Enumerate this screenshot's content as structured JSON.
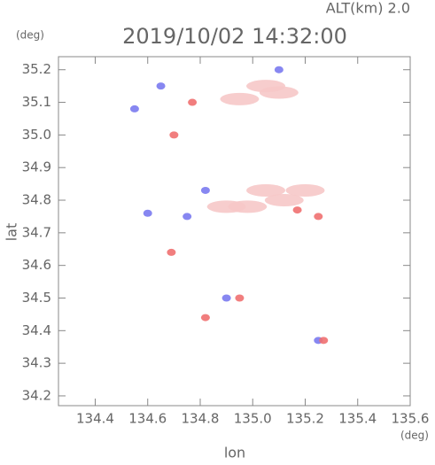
{
  "chart_data": {
    "type": "scatter",
    "title": "2019/10/02 14:32:00",
    "subtitle": "ALT(km) 2.0",
    "y_unit": "(deg)",
    "x_unit": "(deg)",
    "y_label": "lat",
    "x_label": "lon",
    "xlim": [
      134.26,
      135.6
    ],
    "ylim": [
      34.17,
      35.24
    ],
    "xticks": [
      134.4,
      134.6,
      134.8,
      {
        "value": 135.0,
        "label": "135.0"
      },
      135.2,
      135.4,
      135.6
    ],
    "yticks": [
      34.2,
      34.3,
      34.4,
      34.5,
      34.6,
      34.7,
      34.8,
      34.9,
      {
        "value": 35.0,
        "label": "35.0"
      },
      35.1,
      35.2
    ],
    "series": [
      {
        "color": "#f6c8c8",
        "x": [
          135.1,
          134.95,
          135.05,
          134.98,
          135.12,
          135.2,
          134.9,
          135.05
        ],
        "y": [
          35.13,
          35.11,
          35.15,
          34.78,
          34.8,
          34.83,
          34.78,
          34.83
        ]
      },
      {
        "color": "#7a7af0",
        "x": [
          134.55,
          134.65,
          134.82,
          134.75,
          135.1,
          134.6,
          134.9,
          135.25
        ],
        "y": [
          35.08,
          35.15,
          34.83,
          34.75,
          35.2,
          34.76,
          34.5,
          34.37
        ]
      },
      {
        "color": "#f07070",
        "x": [
          134.77,
          134.7,
          135.25,
          135.27,
          134.82,
          134.69,
          134.95,
          135.17
        ],
        "y": [
          35.1,
          35.0,
          34.75,
          34.37,
          34.44,
          34.64,
          34.5,
          34.77
        ]
      }
    ]
  }
}
